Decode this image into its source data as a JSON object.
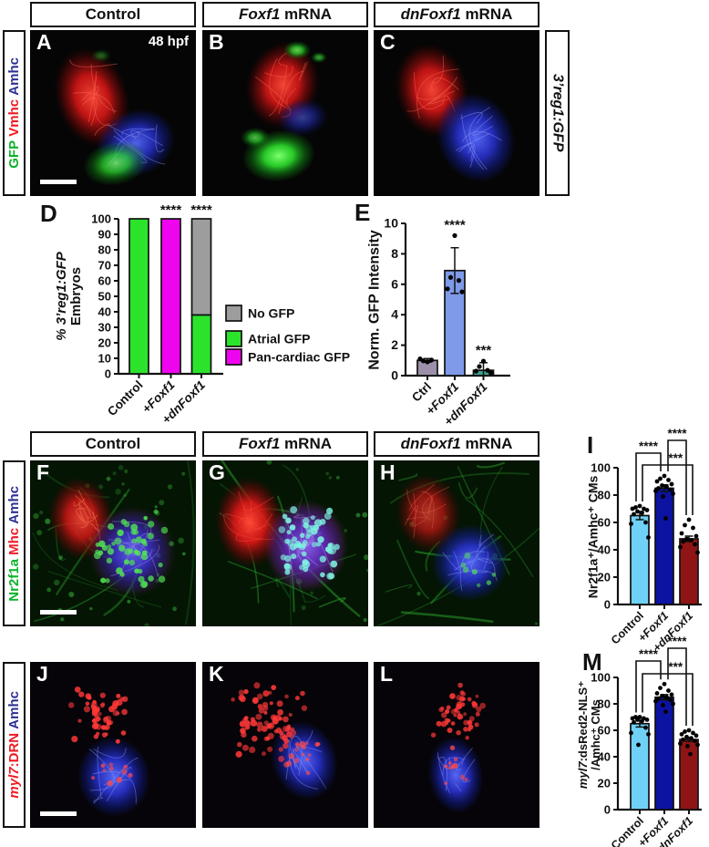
{
  "row1": {
    "headers": [
      {
        "em": "",
        "rest": "Control"
      },
      {
        "em": "Foxf1",
        "rest": " mRNA"
      },
      {
        "em": "dnFoxf1",
        "rest": " mRNA"
      }
    ],
    "side": [
      {
        "text": "GFP",
        "color": "#0db32b"
      },
      {
        "text": "Vmhc",
        "color": "#ed1c24"
      },
      {
        "text": "Amhc",
        "color": "#2e3192"
      }
    ],
    "right_label": "3’reg1:GFP",
    "panels": [
      {
        "letter": "A",
        "tag": "48 hpf"
      },
      {
        "letter": "B",
        "tag": ""
      },
      {
        "letter": "C",
        "tag": ""
      }
    ]
  },
  "row3": {
    "headers": [
      {
        "em": "",
        "rest": "Control"
      },
      {
        "em": "Foxf1",
        "rest": " mRNA"
      },
      {
        "em": "dnFoxf1",
        "rest": " mRNA"
      }
    ],
    "side": [
      {
        "text": "Nr2f1a",
        "color": "#0db32b"
      },
      {
        "text": "Mhc",
        "color": "#ed1c24"
      },
      {
        "text": "Amhc",
        "color": "#2e3192"
      }
    ],
    "panels": [
      {
        "letter": "F",
        "tag": ""
      },
      {
        "letter": "G",
        "tag": ""
      },
      {
        "letter": "H",
        "tag": ""
      }
    ]
  },
  "row4": {
    "side": [
      {
        "em": "myl7",
        "text": ":DRN",
        "color": "#ed1c24"
      },
      {
        "em": "",
        "text": "Amhc",
        "color": "#2e3192"
      }
    ],
    "panels": [
      {
        "letter": "J",
        "tag": ""
      },
      {
        "letter": "K",
        "tag": ""
      },
      {
        "letter": "L",
        "tag": ""
      }
    ]
  },
  "chart_data": [
    {
      "id": "D",
      "letter": "D",
      "type": "bar",
      "subtype": "stacked",
      "ylabel_lines": [
        {
          "text": "% 3’reg1:GFP",
          "italic": true
        },
        {
          "text": "Embryos",
          "italic": false
        }
      ],
      "ylim": [
        0,
        100
      ],
      "yticks": [
        0,
        10,
        20,
        30,
        40,
        50,
        60,
        70,
        80,
        90,
        100
      ],
      "categories": [
        {
          "label": "Control",
          "italic": false
        },
        {
          "label": "+Foxf1",
          "italic": true
        },
        {
          "label": "+dnFoxf1",
          "italic": true
        }
      ],
      "series": [
        {
          "name": "Atrial GFP",
          "color": "#2ce32c",
          "values": [
            100,
            0,
            38
          ]
        },
        {
          "name": "Pan-cardiac GFP",
          "color": "#ef04ef",
          "values": [
            0,
            100,
            0
          ]
        },
        {
          "name": "No GFP",
          "color": "#9d9d9d",
          "values": [
            0,
            0,
            62
          ]
        }
      ],
      "legend": {
        "position": "right",
        "items": [
          {
            "label": "No GFP",
            "color": "#9d9d9d"
          },
          {
            "label": "Atrial GFP",
            "color": "#2ce32c"
          },
          {
            "label": "Pan-cardiac GFP",
            "color": "#ef04ef"
          }
        ]
      },
      "significance": [
        {
          "category": "+Foxf1",
          "text": "****"
        },
        {
          "category": "+dnFoxf1",
          "text": "****"
        }
      ]
    },
    {
      "id": "E",
      "letter": "E",
      "type": "bar",
      "subtype": "scatter-bar",
      "ylabel_lines": [
        {
          "text": "Norm. GFP Intensity",
          "italic": false
        }
      ],
      "ylim": [
        0,
        10
      ],
      "yticks": [
        0,
        2,
        4,
        6,
        8,
        10
      ],
      "categories": [
        {
          "label": "Ctrl",
          "italic": false
        },
        {
          "label": "+Foxf1",
          "italic": true
        },
        {
          "label": "+dnFoxf1",
          "italic": true
        }
      ],
      "values": [
        1.0,
        6.9,
        0.35
      ],
      "sd": [
        0.12,
        1.5,
        0.5
      ],
      "dots": [
        [
          0.9,
          0.97,
          1.03,
          1.1
        ],
        [
          9.2,
          6.45,
          6.25,
          5.7,
          5.5
        ],
        [
          0.95,
          0.6,
          0.35,
          0.3,
          0.18
        ]
      ],
      "colors": [
        "#9b8fa9",
        "#7e9ae8",
        "#3aa08f"
      ],
      "significance": [
        {
          "category": "+Foxf1",
          "text": "****"
        },
        {
          "category": "+dnFoxf1",
          "text": "***"
        }
      ]
    },
    {
      "id": "I",
      "letter": "I",
      "type": "bar",
      "subtype": "scatter-bar",
      "ylabel_lines": [
        {
          "text": "Nr2f1a⁺/Amhc⁺ CMs",
          "italic": false
        }
      ],
      "ylim": [
        0,
        100
      ],
      "yticks": [
        0,
        20,
        40,
        60,
        80,
        100
      ],
      "categories": [
        {
          "label": "Control",
          "italic": false
        },
        {
          "label": "+Foxf1",
          "italic": true
        },
        {
          "label": "+dnFoxf1",
          "italic": true
        }
      ],
      "values": [
        65,
        85,
        48
      ],
      "sd": [
        3,
        2.5,
        2
      ],
      "dots": [
        [
          72,
          71,
          70,
          70,
          69,
          68,
          67,
          66,
          60,
          59,
          49
        ],
        [
          94,
          92,
          91,
          90,
          88,
          87,
          86,
          85,
          84,
          83,
          81,
          79,
          63
        ],
        [
          62,
          58,
          56,
          52,
          50,
          48,
          47,
          46,
          44,
          42,
          38
        ]
      ],
      "colors": [
        "#6fd1f5",
        "#0b13a0",
        "#8f1416"
      ],
      "brackets": [
        {
          "from": "Control",
          "to": "+Foxf1",
          "text": "****"
        },
        {
          "from": "+Foxf1",
          "to": "+dnFoxf1",
          "text": "****"
        },
        {
          "from": "Control",
          "to": "+dnFoxf1",
          "text": "***"
        }
      ]
    },
    {
      "id": "M",
      "letter": "M",
      "type": "bar",
      "subtype": "scatter-bar",
      "ylabel_lines": [
        {
          "em": "myl7",
          "text": ":dsRed2-NLS⁺",
          "italic": false
        },
        {
          "em": "",
          "text": "/Amhc⁺ CMs",
          "italic": false
        }
      ],
      "ylim": [
        0,
        100
      ],
      "yticks": [
        0,
        20,
        40,
        60,
        80,
        100
      ],
      "categories": [
        {
          "label": "Control",
          "italic": false
        },
        {
          "label": "+Foxf1",
          "italic": true
        },
        {
          "label": "+dnFoxf1",
          "italic": true
        }
      ],
      "values": [
        65,
        85,
        53
      ],
      "sd": [
        2.5,
        2,
        1.5
      ],
      "dots": [
        [
          70,
          70,
          69,
          69,
          68,
          68,
          67,
          66,
          62,
          58,
          57,
          49
        ],
        [
          95,
          92,
          90,
          88,
          87,
          86,
          85,
          84,
          83,
          82,
          80,
          79,
          74
        ],
        [
          60,
          59,
          58,
          57,
          56,
          55,
          54,
          53,
          52,
          50,
          49,
          48,
          42
        ]
      ],
      "colors": [
        "#6fd1f5",
        "#0b13a0",
        "#8f1416"
      ],
      "brackets": [
        {
          "from": "Control",
          "to": "+Foxf1",
          "text": "****"
        },
        {
          "from": "+Foxf1",
          "to": "+dnFoxf1",
          "text": "****"
        },
        {
          "from": "Control",
          "to": "+dnFoxf1",
          "text": "***"
        }
      ]
    }
  ]
}
